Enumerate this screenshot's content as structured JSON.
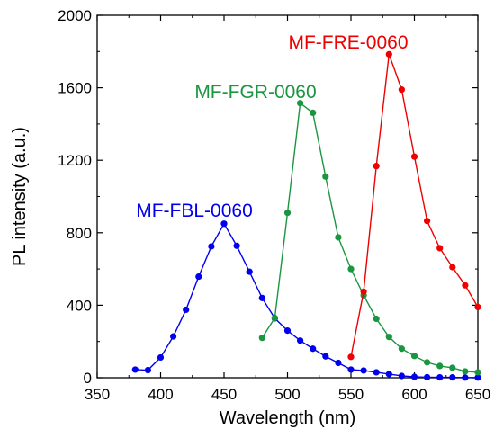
{
  "chart_data": {
    "type": "line",
    "title": "",
    "xlabel": "Wavelength (nm)",
    "ylabel": "PL intensity (a.u.)",
    "xlim": [
      350,
      650
    ],
    "ylim": [
      0,
      2000
    ],
    "xticks": [
      350,
      400,
      450,
      500,
      550,
      600,
      650
    ],
    "yticks": [
      0,
      400,
      800,
      1200,
      1600,
      2000
    ],
    "grid": false,
    "legend": "none",
    "series": [
      {
        "name": "MF-FBL-0060",
        "color": "#0000ee",
        "x": [
          380,
          390,
          400,
          410,
          420,
          430,
          440,
          450,
          460,
          470,
          480,
          490,
          500,
          510,
          520,
          530,
          540,
          550,
          560,
          570,
          580,
          590,
          600,
          610,
          620,
          630,
          640,
          650
        ],
        "y": [
          45,
          42,
          112,
          228,
          375,
          558,
          725,
          850,
          728,
          585,
          440,
          328,
          260,
          205,
          160,
          118,
          82,
          45,
          40,
          30,
          20,
          10,
          5,
          3,
          2,
          2,
          1,
          1
        ]
      },
      {
        "name": "MF-FGR-0060",
        "color": "#1a9641",
        "x": [
          480,
          490,
          500,
          510,
          520,
          530,
          540,
          550,
          560,
          570,
          580,
          590,
          600,
          610,
          620,
          630,
          640,
          650
        ],
        "y": [
          220,
          330,
          910,
          1515,
          1462,
          1110,
          775,
          600,
          455,
          325,
          225,
          160,
          120,
          85,
          65,
          55,
          35,
          30
        ]
      },
      {
        "name": "MF-FRE-0060",
        "color": "#ee0000",
        "x": [
          550,
          560,
          570,
          580,
          590,
          600,
          610,
          620,
          630,
          640,
          650
        ],
        "y": [
          115,
          475,
          1168,
          1785,
          1590,
          1220,
          865,
          715,
          610,
          510,
          390
        ]
      }
    ],
    "annotations": [
      {
        "text": "MF-FBL-0060",
        "series": 0
      },
      {
        "text": "MF-FGR-0060",
        "series": 1
      },
      {
        "text": "MF-FRE-0060",
        "series": 2
      }
    ]
  }
}
